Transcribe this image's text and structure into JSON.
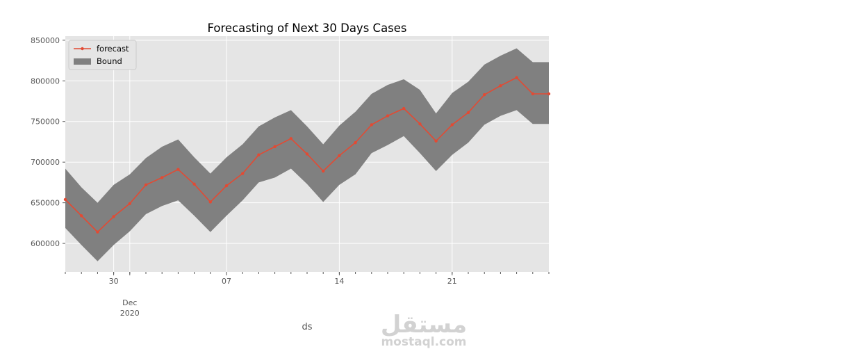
{
  "chart_data": {
    "type": "line",
    "title": "Forecasting of Next 30 Days Cases",
    "xlabel": "ds",
    "ylabel": "",
    "x": [
      "2020-11-27",
      "2020-11-28",
      "2020-11-29",
      "2020-11-30",
      "2020-12-01",
      "2020-12-02",
      "2020-12-03",
      "2020-12-04",
      "2020-12-05",
      "2020-12-06",
      "2020-12-07",
      "2020-12-08",
      "2020-12-09",
      "2020-12-10",
      "2020-12-11",
      "2020-12-12",
      "2020-12-13",
      "2020-12-14",
      "2020-12-15",
      "2020-12-16",
      "2020-12-17",
      "2020-12-18",
      "2020-12-19",
      "2020-12-20",
      "2020-12-21",
      "2020-12-22",
      "2020-12-23",
      "2020-12-24",
      "2020-12-25",
      "2020-12-26",
      "2020-12-27"
    ],
    "xlim": [
      "2020-11-27",
      "2020-12-27"
    ],
    "ylim": [
      565000,
      855000
    ],
    "yticks": [
      600000,
      650000,
      700000,
      750000,
      800000,
      850000
    ],
    "ytick_labels": [
      "600000",
      "650000",
      "700000",
      "750000",
      "800000",
      "850000"
    ],
    "xticks_major": [
      {
        "date": "2020-11-30",
        "label": "30"
      },
      {
        "date": "2020-12-07",
        "label": "07"
      },
      {
        "date": "2020-12-14",
        "label": "14"
      },
      {
        "date": "2020-12-21",
        "label": "21"
      }
    ],
    "xtick_secondary": {
      "date": "2020-12-01",
      "label1": "Dec",
      "label2": "2020"
    },
    "series": [
      {
        "name": "forecast",
        "color": "#E24A33",
        "values": [
          654000,
          634000,
          614000,
          633000,
          649000,
          672000,
          681000,
          691000,
          673000,
          651000,
          671000,
          686000,
          709000,
          719000,
          729000,
          710000,
          689000,
          708000,
          724000,
          746000,
          757000,
          766000,
          747000,
          726000,
          746000,
          761000,
          783000,
          794000,
          804000,
          784000,
          784000
        ]
      }
    ],
    "bound": {
      "name": "Bound",
      "color": "#808080",
      "upper": [
        692000,
        669000,
        650000,
        672000,
        685000,
        705000,
        719000,
        728000,
        706000,
        686000,
        706000,
        722000,
        744000,
        755000,
        764000,
        744000,
        722000,
        745000,
        762000,
        784000,
        795000,
        802000,
        789000,
        760000,
        785000,
        799000,
        820000,
        831000,
        840000,
        823000,
        823000
      ],
      "lower": [
        619000,
        598000,
        578000,
        598000,
        615000,
        636000,
        646000,
        653000,
        634000,
        614000,
        634000,
        653000,
        675000,
        681000,
        692000,
        673000,
        651000,
        672000,
        685000,
        711000,
        721000,
        732000,
        711000,
        689000,
        709000,
        724000,
        746000,
        757000,
        764000,
        747000,
        747000
      ]
    },
    "legend": {
      "position": "top-left",
      "entries": [
        "forecast",
        "Bound"
      ]
    },
    "grid": true,
    "background": "#E5E5E5"
  },
  "watermark": {
    "arabic": "مستقل",
    "latin": "mostaql.com"
  }
}
